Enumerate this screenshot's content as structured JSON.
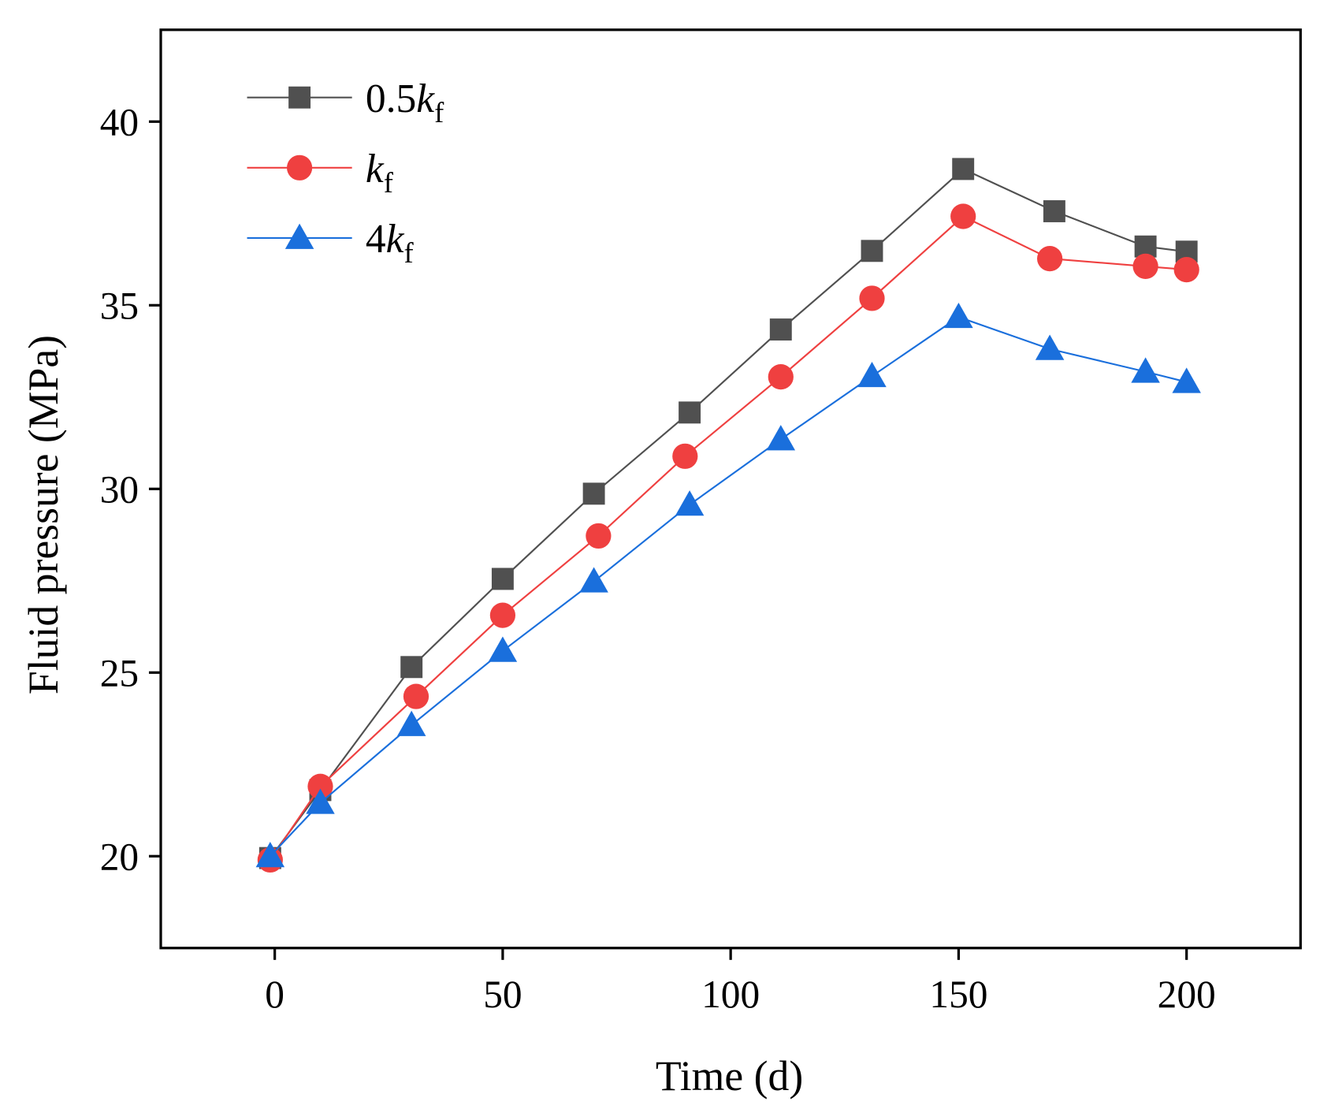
{
  "chart_data": {
    "type": "line",
    "title": "",
    "xlabel": "Time (d)",
    "ylabel": "Fluid pressure (MPa)",
    "xlim": [
      -25,
      225
    ],
    "ylim": [
      17.5,
      42.5
    ],
    "xticks": [
      0,
      50,
      100,
      150,
      200
    ],
    "yticks": [
      20,
      25,
      30,
      35,
      40
    ],
    "grid": false,
    "legend_position": "top-left",
    "series": [
      {
        "name": "0.5k_f",
        "label_main": "0.5",
        "label_k": "k",
        "label_sub": "f",
        "color": "#505050",
        "marker": "square",
        "x": [
          -1,
          10,
          30,
          50,
          70,
          91,
          111,
          131,
          151,
          171,
          191,
          200
        ],
        "y": [
          19.95,
          21.8,
          25.15,
          27.55,
          29.87,
          32.08,
          34.34,
          36.48,
          38.71,
          37.56,
          36.6,
          36.46
        ]
      },
      {
        "name": "k_f",
        "label_main": "",
        "label_k": "k",
        "label_sub": "f",
        "color": "#ef4040",
        "marker": "circle",
        "x": [
          -1,
          10,
          31,
          50,
          71,
          90,
          111,
          131,
          151,
          170,
          191,
          200
        ],
        "y": [
          19.9,
          21.9,
          24.35,
          26.56,
          28.72,
          30.89,
          33.05,
          35.19,
          37.42,
          36.27,
          36.06,
          35.97
        ]
      },
      {
        "name": "4k_f",
        "label_main": "4",
        "label_k": "k",
        "label_sub": "f",
        "color": "#1a6fdc",
        "marker": "triangle",
        "x": [
          -1,
          10,
          30,
          50,
          70,
          91,
          111,
          131,
          150,
          170,
          191,
          200
        ],
        "y": [
          20.0,
          21.45,
          23.57,
          25.59,
          27.48,
          29.57,
          31.35,
          33.07,
          34.68,
          33.81,
          33.19,
          32.91
        ]
      }
    ]
  }
}
